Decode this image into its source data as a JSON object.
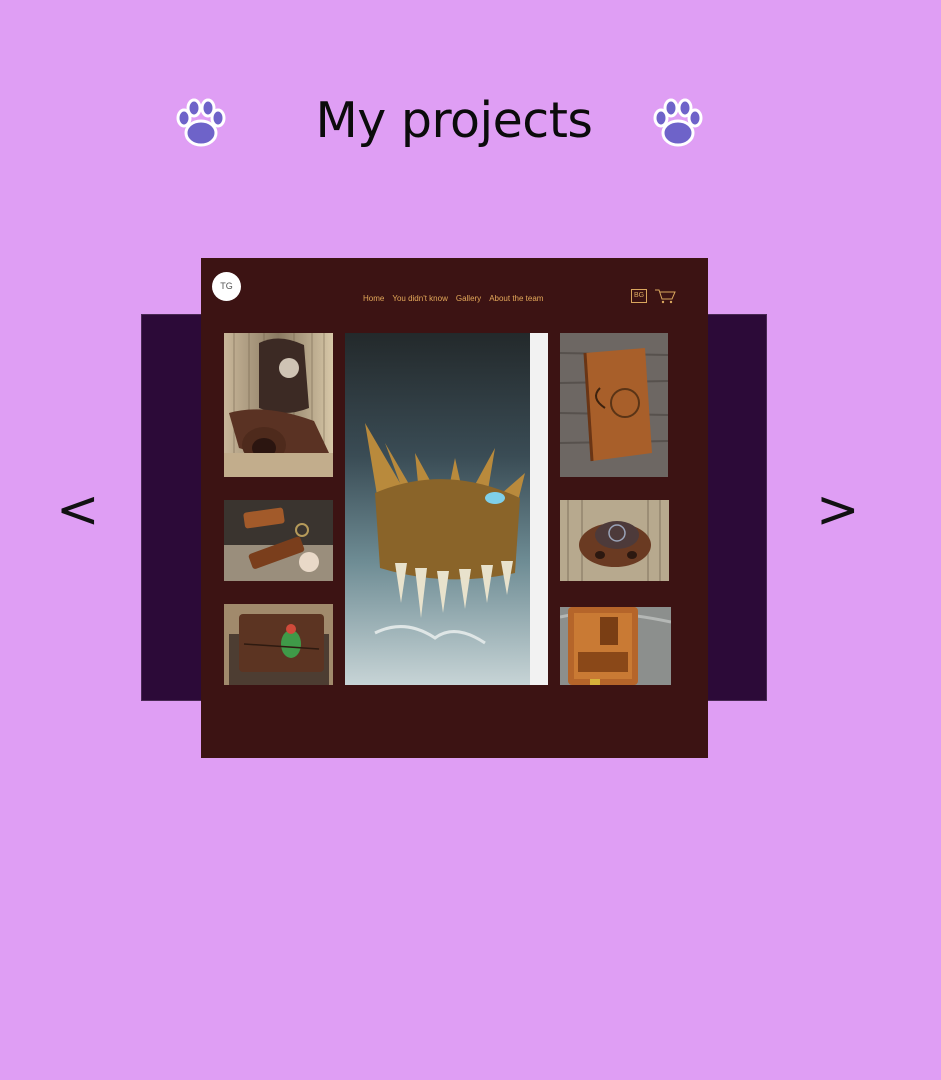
{
  "header": {
    "title": "My projects"
  },
  "carousel": {
    "prev_label": "<",
    "next_label": ">"
  },
  "preview_site": {
    "logo_text": "TG",
    "nav": [
      "Home",
      "You didn't know",
      "Gallery",
      "About the team"
    ],
    "language_label": "BG",
    "gallery_icons": [
      "leather-apron-photo",
      "dragon-mug-photo",
      "leather-journal-photo",
      "leather-keychains-photo",
      "leather-bowl-photo",
      "parrot-wallet-photo",
      "beer-wallet-photo"
    ]
  },
  "colors": {
    "page_background": "#df9ef4",
    "back_panel": "#2c0a38",
    "slide_background": "#3c1313",
    "nav_text": "#e3a85a"
  }
}
